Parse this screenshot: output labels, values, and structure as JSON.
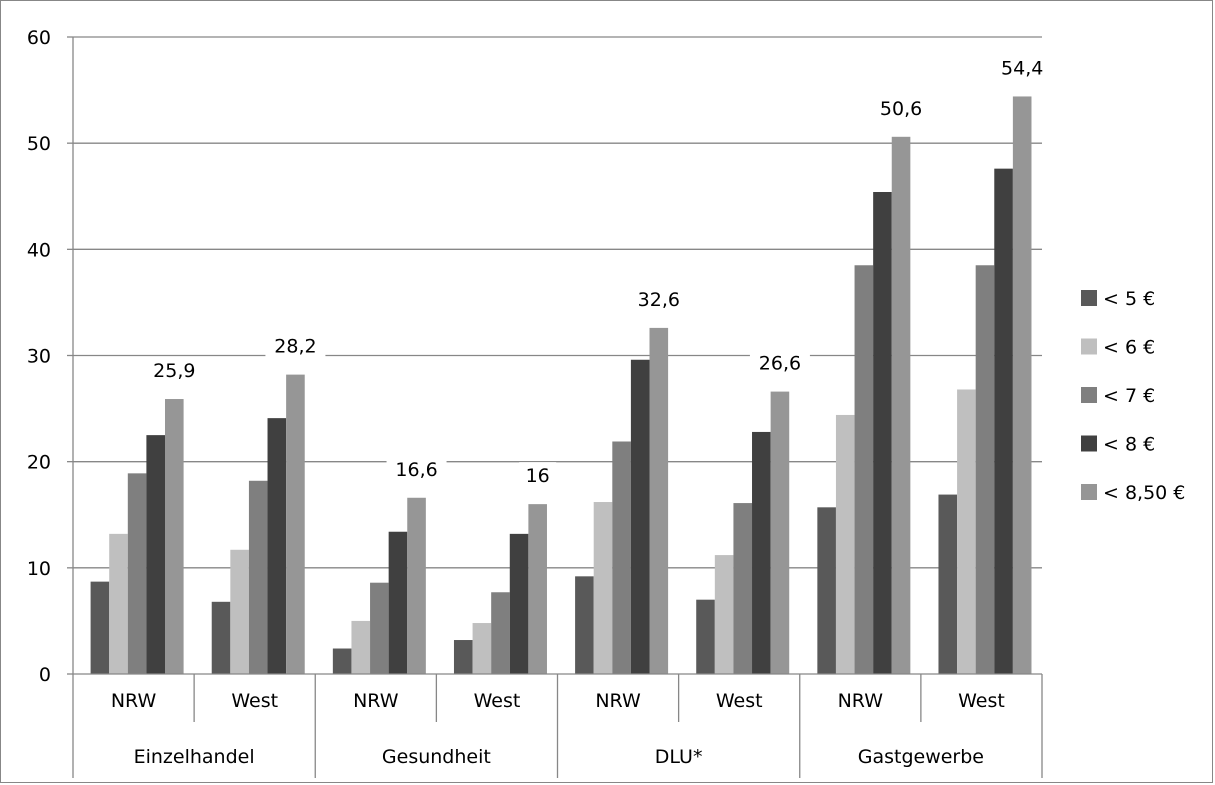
{
  "chart_data": {
    "type": "bar",
    "title": "",
    "xlabel": "",
    "ylabel": "",
    "ylim": [
      0,
      60
    ],
    "yticks": [
      "0",
      "10",
      "20",
      "30",
      "40",
      "50",
      "60"
    ],
    "grid": true,
    "legend_position": "right",
    "groups": [
      "Einzelhandel",
      "Gesundheit",
      "DLU*",
      "Gastgewerbe"
    ],
    "categories": [
      "NRW",
      "West",
      "NRW",
      "West",
      "NRW",
      "West",
      "NRW",
      "West"
    ],
    "series": [
      {
        "name": "< 5 €",
        "color": "#595959",
        "values": [
          8.7,
          6.8,
          2.4,
          3.2,
          9.2,
          7.0,
          15.7,
          16.9
        ]
      },
      {
        "name": "< 6 €",
        "color": "#bfbfbf",
        "values": [
          13.2,
          11.7,
          5.0,
          4.8,
          16.2,
          11.2,
          24.4,
          26.8
        ]
      },
      {
        "name": "< 7 €",
        "color": "#7f7f7f",
        "values": [
          18.9,
          18.2,
          8.6,
          7.7,
          21.9,
          16.1,
          38.5,
          38.5
        ]
      },
      {
        "name": "< 8 €",
        "color": "#404040",
        "values": [
          22.5,
          24.1,
          13.4,
          13.2,
          29.6,
          22.8,
          45.4,
          47.6
        ]
      },
      {
        "name": "< 8,50 €",
        "color": "#969696",
        "values": [
          25.9,
          28.2,
          16.6,
          16.0,
          32.6,
          26.6,
          50.6,
          54.4
        ]
      }
    ],
    "data_labels": [
      "25,9",
      "28,2",
      "16,6",
      "16",
      "32,6",
      "26,6",
      "50,6",
      "54,4"
    ]
  }
}
